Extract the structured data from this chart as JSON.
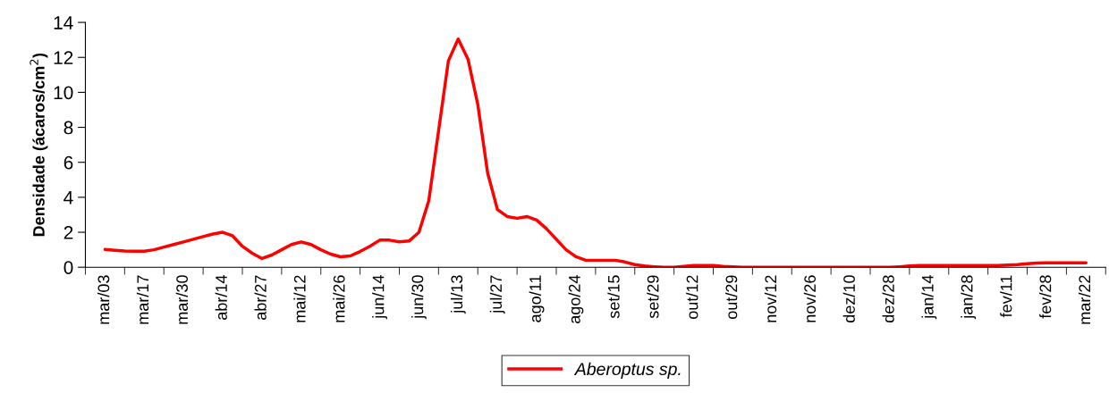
{
  "chart_data": {
    "type": "line",
    "ylabel": "Densidade (ácaros/cm$^{2}$)",
    "categories": [
      "mar/03",
      null,
      null,
      null,
      "mar/17",
      null,
      null,
      null,
      "mar/30",
      null,
      null,
      null,
      "abr/14",
      null,
      null,
      null,
      "abr/27",
      null,
      null,
      null,
      "mai/12",
      null,
      null,
      null,
      "mai/26",
      null,
      null,
      null,
      "jun/14",
      null,
      null,
      null,
      "jun/30",
      null,
      null,
      null,
      "jul/13",
      null,
      null,
      null,
      "jul/27",
      null,
      null,
      null,
      "ago/11",
      null,
      null,
      null,
      "ago/24",
      null,
      null,
      null,
      "set/15",
      null,
      null,
      null,
      "set/29",
      null,
      null,
      null,
      "out/12",
      null,
      null,
      null,
      "out/29",
      null,
      null,
      null,
      "nov/12",
      null,
      null,
      null,
      "nov/26",
      null,
      null,
      null,
      "dez/10",
      null,
      null,
      null,
      "dez/28",
      null,
      null,
      null,
      "jan/14",
      null,
      null,
      null,
      "jan/28",
      null,
      null,
      null,
      "fev/11",
      null,
      null,
      null,
      "fev/28",
      null,
      null,
      null,
      "mar/22"
    ],
    "series": [
      {
        "name": "Aberoptus sp.",
        "color": "#ff0000",
        "values": [
          1.02,
          0.97,
          0.93,
          0.92,
          0.92,
          1.0,
          1.15,
          1.3,
          1.45,
          1.6,
          1.75,
          1.9,
          2.0,
          1.8,
          1.2,
          0.8,
          0.5,
          0.7,
          1.0,
          1.3,
          1.45,
          1.3,
          1.0,
          0.75,
          0.6,
          0.65,
          0.9,
          1.2,
          1.55,
          1.55,
          1.45,
          1.5,
          2.0,
          3.8,
          7.8,
          11.8,
          13.05,
          11.9,
          9.3,
          5.4,
          3.3,
          2.9,
          2.8,
          2.9,
          2.7,
          2.2,
          1.6,
          1.0,
          0.6,
          0.4,
          0.4,
          0.4,
          0.4,
          0.3,
          0.15,
          0.07,
          0.03,
          0.0,
          0.0,
          0.05,
          0.1,
          0.1,
          0.1,
          0.05,
          0.03,
          0.0,
          0.0,
          0.0,
          0.0,
          0.0,
          0.0,
          0.0,
          0.0,
          0.0,
          0.0,
          0.0,
          0.0,
          0.0,
          0.0,
          0.0,
          0.0,
          0.03,
          0.07,
          0.1,
          0.1,
          0.1,
          0.1,
          0.1,
          0.1,
          0.1,
          0.1,
          0.1,
          0.12,
          0.15,
          0.2,
          0.24,
          0.25,
          0.25,
          0.25,
          0.25,
          0.25
        ]
      }
    ],
    "ylim": [
      0,
      14
    ],
    "yticks": [
      0,
      2,
      4,
      6,
      8,
      10,
      12,
      14
    ],
    "legend": "bottom",
    "grid": false,
    "marker": "none",
    "line_style": "solid"
  }
}
